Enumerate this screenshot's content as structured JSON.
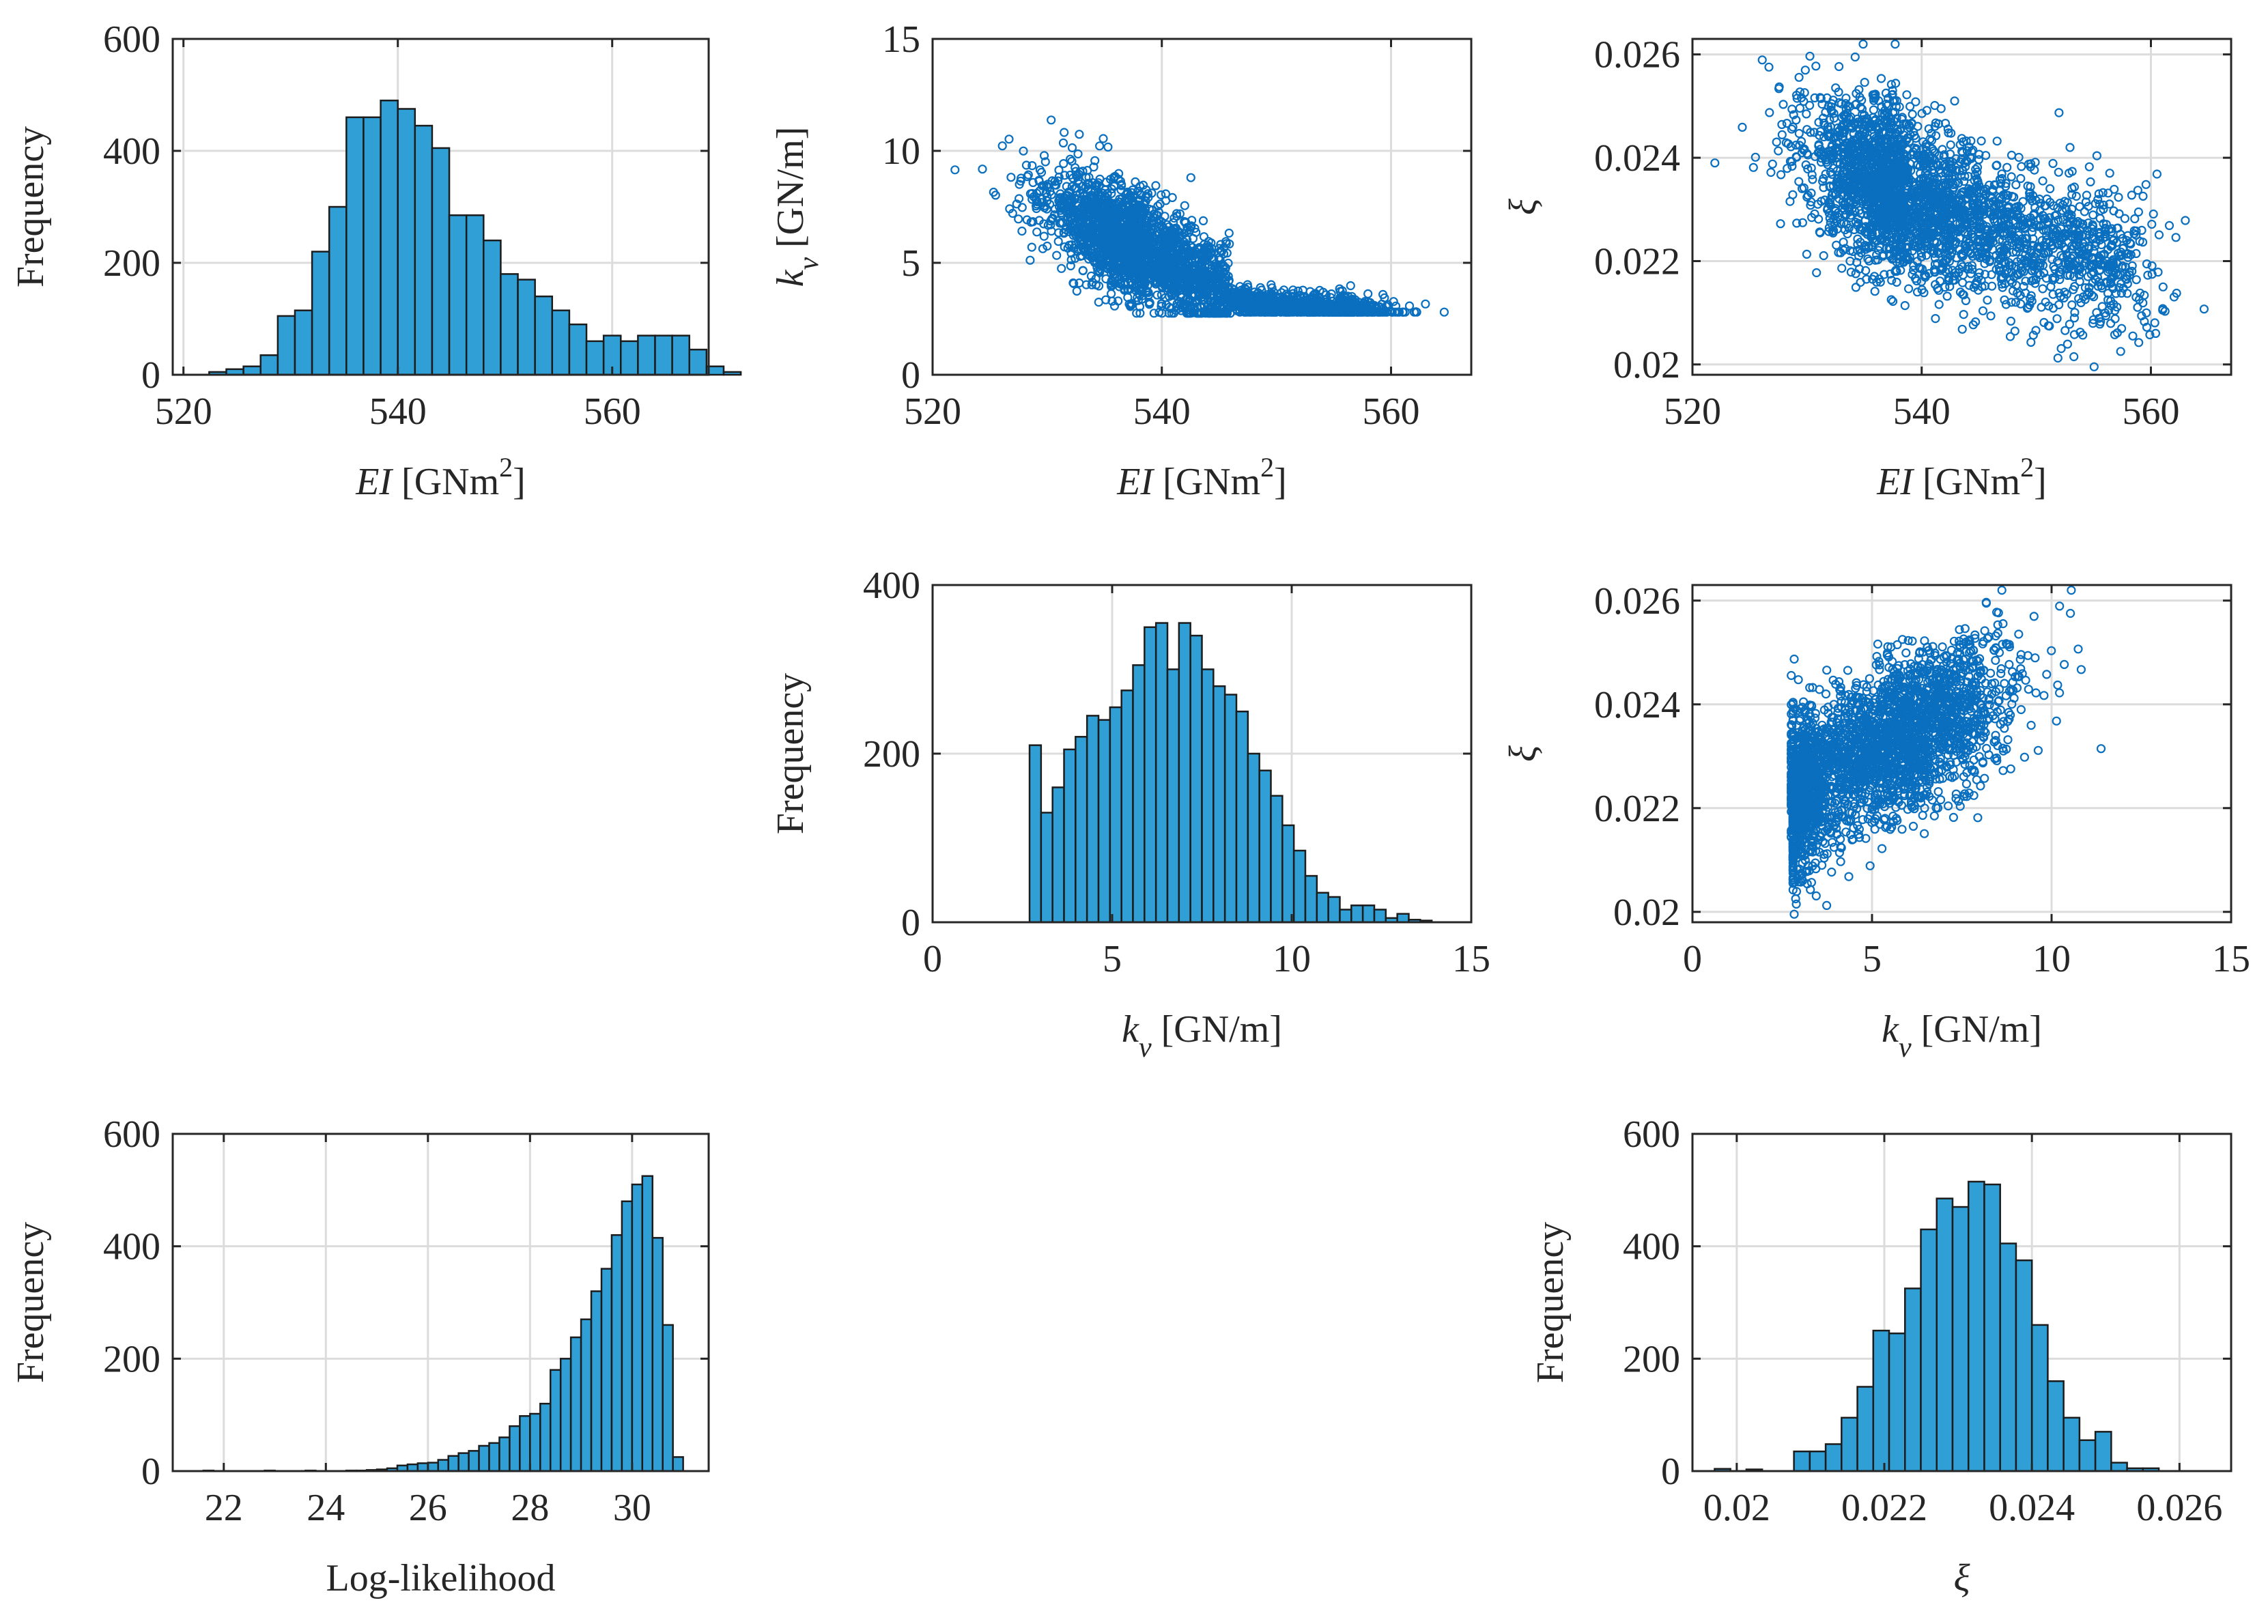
{
  "figure": {
    "description": "Posterior sample corner plot"
  },
  "colors": {
    "bar_fill": "#2f9fd6",
    "bar_edge": "#1c1c1c",
    "marker": "#0a6fbf",
    "grid": "#dcdcdc",
    "axis": "#262626"
  },
  "chart_data": [
    {
      "id": "hist-ei",
      "type": "bar",
      "xlabel_italic": "EI",
      "xlabel_rest": " [GNm",
      "xlabel_sup": "2",
      "xlabel_tail": "]",
      "ylabel": "Frequency",
      "xlim": [
        519,
        569
      ],
      "ylim": [
        0,
        600
      ],
      "xticks": [
        520,
        540,
        560
      ],
      "yticks": [
        0,
        200,
        400,
        600
      ],
      "bin_start": 522.4,
      "bin_width": 1.6,
      "values": [
        5,
        10,
        15,
        35,
        105,
        115,
        220,
        300,
        460,
        460,
        490,
        475,
        445,
        405,
        285,
        285,
        240,
        180,
        170,
        140,
        115,
        90,
        60,
        70,
        60,
        70,
        70,
        70,
        45,
        15,
        5
      ]
    },
    {
      "id": "scatter-kv-ei",
      "type": "scatter",
      "xlabel_italic": "EI",
      "xlabel_rest": " [GNm",
      "xlabel_sup": "2",
      "xlabel_tail": "]",
      "ylabel_italic": "k",
      "ylabel_sub": "v",
      "ylabel_rest": " [GN/m]",
      "xlim": [
        520,
        567
      ],
      "ylim": [
        0,
        15
      ],
      "xticks": [
        520,
        540,
        560
      ],
      "yticks": [
        0,
        5,
        10,
        15
      ],
      "n_points": 2800
    },
    {
      "id": "scatter-xi-ei",
      "type": "scatter",
      "xlabel_italic": "EI",
      "xlabel_rest": " [GNm",
      "xlabel_sup": "2",
      "xlabel_tail": "]",
      "ylabel": "ξ",
      "xlim": [
        520,
        567
      ],
      "ylim": [
        0.0198,
        0.0263
      ],
      "xticks": [
        520,
        540,
        560
      ],
      "yticks": [
        0.02,
        0.022,
        0.024,
        0.026
      ],
      "ytick_labels": [
        "0.02",
        "0.022",
        "0.024",
        "0.026"
      ],
      "n_points": 2800
    },
    {
      "id": "hist-kv",
      "type": "bar",
      "xlabel_italic": "k",
      "xlabel_sub": "v",
      "xlabel_rest": " [GN/m]",
      "ylabel": "Frequency",
      "xlim": [
        0,
        15
      ],
      "ylim": [
        0,
        400
      ],
      "xticks": [
        0,
        5,
        10,
        15
      ],
      "yticks": [
        0,
        200,
        400
      ],
      "bin_start": 2.7,
      "bin_width": 0.32,
      "values": [
        210,
        130,
        160,
        205,
        220,
        245,
        240,
        255,
        275,
        305,
        350,
        355,
        300,
        355,
        340,
        300,
        280,
        270,
        250,
        200,
        180,
        150,
        115,
        85,
        55,
        35,
        30,
        15,
        20,
        20,
        15,
        5,
        10,
        3,
        2
      ]
    },
    {
      "id": "scatter-xi-kv",
      "type": "scatter",
      "xlabel_italic": "k",
      "xlabel_sub": "v",
      "xlabel_rest": " [GN/m]",
      "ylabel": "ξ",
      "xlim": [
        0,
        15
      ],
      "ylim": [
        0.0198,
        0.0263
      ],
      "xticks": [
        0,
        5,
        10,
        15
      ],
      "yticks": [
        0.02,
        0.022,
        0.024,
        0.026
      ],
      "ytick_labels": [
        "0.02",
        "0.022",
        "0.024",
        "0.026"
      ],
      "n_points": 2800
    },
    {
      "id": "hist-loglik",
      "type": "bar",
      "xlabel": "Log-likelihood",
      "ylabel": "Frequency",
      "xlim": [
        21,
        31.5
      ],
      "ylim": [
        0,
        600
      ],
      "xticks": [
        22,
        24,
        26,
        28,
        30
      ],
      "yticks": [
        0,
        200,
        400,
        600
      ],
      "bin_start": 21.6,
      "bin_width": 0.2,
      "values": [
        1,
        0,
        0,
        0,
        0,
        0,
        1,
        0,
        0,
        0,
        1,
        0,
        0,
        0,
        1,
        1,
        2,
        3,
        5,
        10,
        12,
        14,
        15,
        20,
        27,
        32,
        36,
        45,
        50,
        60,
        80,
        98,
        102,
        120,
        180,
        200,
        238,
        270,
        320,
        360,
        420,
        480,
        510,
        525,
        415,
        260,
        25
      ]
    },
    {
      "id": "hist-xi",
      "type": "bar",
      "xlabel": "ξ",
      "ylabel": "Frequency",
      "xlim": [
        0.0194,
        0.0267
      ],
      "ylim": [
        0,
        600
      ],
      "xticks": [
        0.02,
        0.022,
        0.024,
        0.026
      ],
      "yticks": [
        0,
        200,
        400,
        600
      ],
      "xtick_labels": [
        "0.02",
        "0.022",
        "0.024",
        "0.026"
      ],
      "bin_start": 0.0197,
      "bin_width": 0.000215,
      "values": [
        4,
        0,
        3,
        0,
        0,
        35,
        35,
        48,
        95,
        150,
        250,
        245,
        325,
        430,
        485,
        470,
        515,
        510,
        405,
        375,
        260,
        160,
        95,
        55,
        70,
        15,
        5,
        5
      ]
    }
  ]
}
